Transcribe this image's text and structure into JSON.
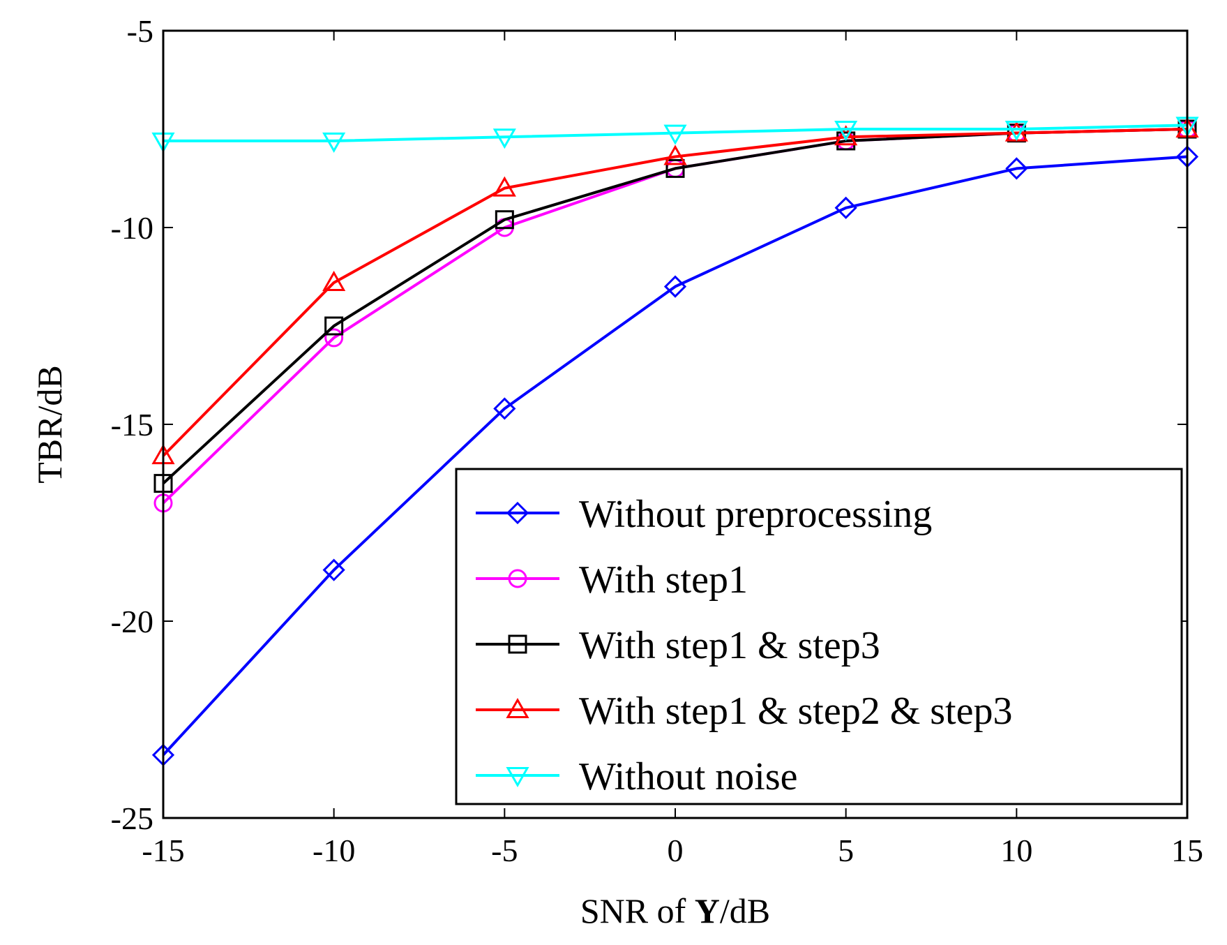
{
  "chart_data": {
    "type": "line",
    "title": "",
    "xlabel_parts": [
      "SNR of ",
      "Y",
      "/dB"
    ],
    "ylabel": "TBR/dB",
    "x": [
      -15,
      -10,
      -5,
      0,
      5,
      10,
      15
    ],
    "xlim": [
      -15,
      15
    ],
    "ylim": [
      -25,
      -5
    ],
    "xticks": [
      -15,
      -10,
      -5,
      0,
      5,
      10,
      15
    ],
    "yticks": [
      -5,
      -10,
      -15,
      -20,
      -25
    ],
    "xtick_labels": [
      "-15",
      "-10",
      "-5",
      "0",
      "5",
      "10",
      "15"
    ],
    "ytick_labels": [
      "-5",
      "-10",
      "-15",
      "-20",
      "-25"
    ],
    "grid": false,
    "legend_position": "bottom-right",
    "series": [
      {
        "name": "Without preprocessing",
        "color": "#0000ff",
        "marker": "diamond",
        "values": [
          -23.4,
          -18.7,
          -14.6,
          -11.5,
          -9.5,
          -8.5,
          -8.2
        ]
      },
      {
        "name": "With step1",
        "color": "#ff00ff",
        "marker": "circle",
        "values": [
          -17.0,
          -12.8,
          -10.0,
          -8.5,
          -7.8,
          -7.6,
          -7.5
        ]
      },
      {
        "name": "With step1 & step3",
        "color": "#000000",
        "marker": "square",
        "values": [
          -16.5,
          -12.5,
          -9.8,
          -8.5,
          -7.8,
          -7.6,
          -7.5
        ]
      },
      {
        "name": "With step1 & step2 & step3",
        "color": "#ff0000",
        "marker": "triangle-up",
        "values": [
          -15.8,
          -11.4,
          -9.0,
          -8.2,
          -7.7,
          -7.6,
          -7.5
        ]
      },
      {
        "name": "Without noise",
        "color": "#00ffff",
        "marker": "triangle-down",
        "values": [
          -7.8,
          -7.8,
          -7.7,
          -7.6,
          -7.5,
          -7.5,
          -7.4
        ]
      }
    ]
  }
}
